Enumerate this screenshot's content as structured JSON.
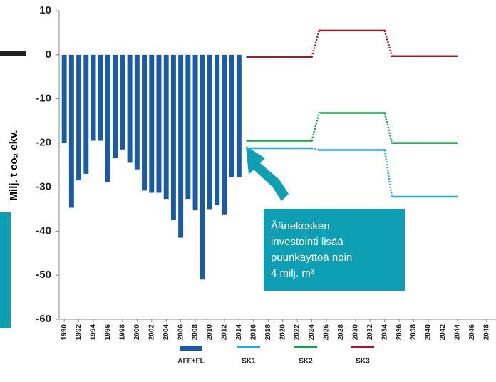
{
  "chart_data": {
    "type": "bar_line",
    "ylabel": "Milj. t co₂ ekv.",
    "ylim": [
      -60,
      10
    ],
    "yticks": [
      -60,
      -50,
      -40,
      -30,
      -20,
      -10,
      0,
      10
    ],
    "xlim": [
      1989.3,
      2049.3
    ],
    "xticks": [
      1990,
      1992,
      1994,
      1996,
      1998,
      2000,
      2002,
      2004,
      2006,
      2008,
      2010,
      2012,
      2014,
      2016,
      2018,
      2020,
      2022,
      2024,
      2026,
      2028,
      2030,
      2032,
      2034,
      2036,
      2038,
      2040,
      2042,
      2044,
      2046,
      2048
    ],
    "grid": false,
    "bars": {
      "name": "AFF+FL",
      "color": "#1a5aa6",
      "x": [
        1990,
        1991,
        1992,
        1993,
        1994,
        1995,
        1996,
        1997,
        1998,
        1999,
        2000,
        2001,
        2002,
        2003,
        2004,
        2005,
        2006,
        2007,
        2008,
        2009,
        2010,
        2011,
        2012,
        2013,
        2014
      ],
      "values": [
        -20,
        -34.7,
        -28.5,
        -27,
        -19.5,
        -19.5,
        -28.8,
        -23.3,
        -21.5,
        -24.5,
        -26,
        -30.8,
        -31.3,
        -31.3,
        -32.7,
        -37.5,
        -41.5,
        -32.7,
        -35.3,
        -51,
        -35,
        -34,
        -36.2,
        -27.7,
        -27.7
      ]
    },
    "line_x": [
      2015,
      2024,
      2025,
      2034,
      2035,
      2044
    ],
    "dotted_x_ranges": [
      [
        2024,
        2025
      ],
      [
        2034,
        2035
      ]
    ],
    "series": [
      {
        "name": "SK1",
        "color": "#2aa8e0",
        "values": [
          -21.2,
          -21.2,
          -21.6,
          -21.6,
          -32.2,
          -32.2
        ]
      },
      {
        "name": "SK2",
        "color": "#1a9e50",
        "values": [
          -19.5,
          -19.5,
          -13.2,
          -13.2,
          -20,
          -20
        ]
      },
      {
        "name": "SK3",
        "color": "#9b1c2a",
        "values": [
          -0.5,
          -0.5,
          5.5,
          5.5,
          -0.3,
          -0.3
        ]
      }
    ],
    "annotation": [
      "Äänekosken",
      "investointi lisää",
      "puunkäyttöä noin",
      "4 milj. m³"
    ]
  }
}
